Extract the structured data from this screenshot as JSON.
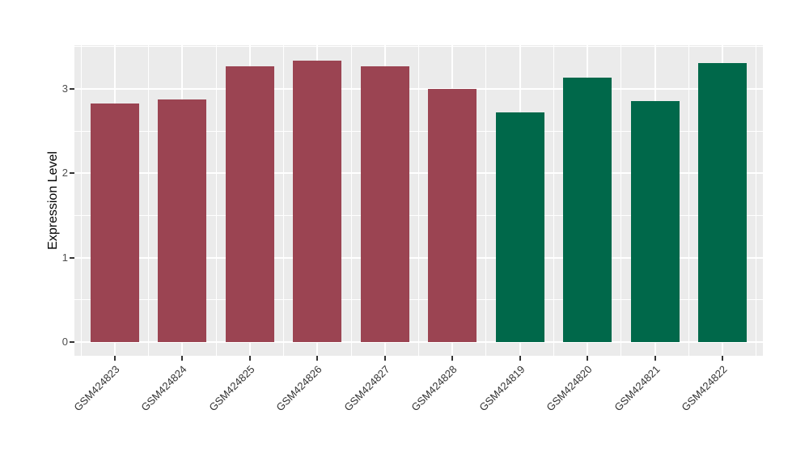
{
  "chart_data": {
    "type": "bar",
    "title": "",
    "xlabel": "",
    "ylabel": "Expression Level",
    "categories": [
      "GSM424823",
      "GSM424824",
      "GSM424825",
      "GSM424826",
      "GSM424827",
      "GSM424828",
      "GSM424819",
      "GSM424820",
      "GSM424821",
      "GSM424822"
    ],
    "values": [
      2.83,
      2.88,
      3.27,
      3.34,
      3.27,
      3.0,
      2.72,
      3.13,
      2.86,
      3.31
    ],
    "bar_colors": [
      "#9B4452",
      "#9B4452",
      "#9B4452",
      "#9B4452",
      "#9B4452",
      "#9B4452",
      "#00684A",
      "#00684A",
      "#00684A",
      "#00684A"
    ],
    "group_colors": {
      "left_group_maroon": "#9B4452",
      "right_group_green": "#00684A"
    },
    "y_ticks": [
      0,
      1,
      2,
      3
    ],
    "y_tick_labels": [
      "0",
      "1",
      "2",
      "3"
    ],
    "y_minor_ticks": [
      0.5,
      1.5,
      2.5,
      3.5
    ],
    "ylim": [
      -0.17,
      3.52
    ],
    "x_label_rotation_deg": 45,
    "legend_position": "none",
    "grid": {
      "panel_bg": "#EBEBEB",
      "major_color": "#FFFFFF",
      "minor_color": "#FFFFFF"
    },
    "axis_text_color": "#4D4D4D",
    "x_text_color": "#333333",
    "tick_mark_color": "#333333"
  }
}
